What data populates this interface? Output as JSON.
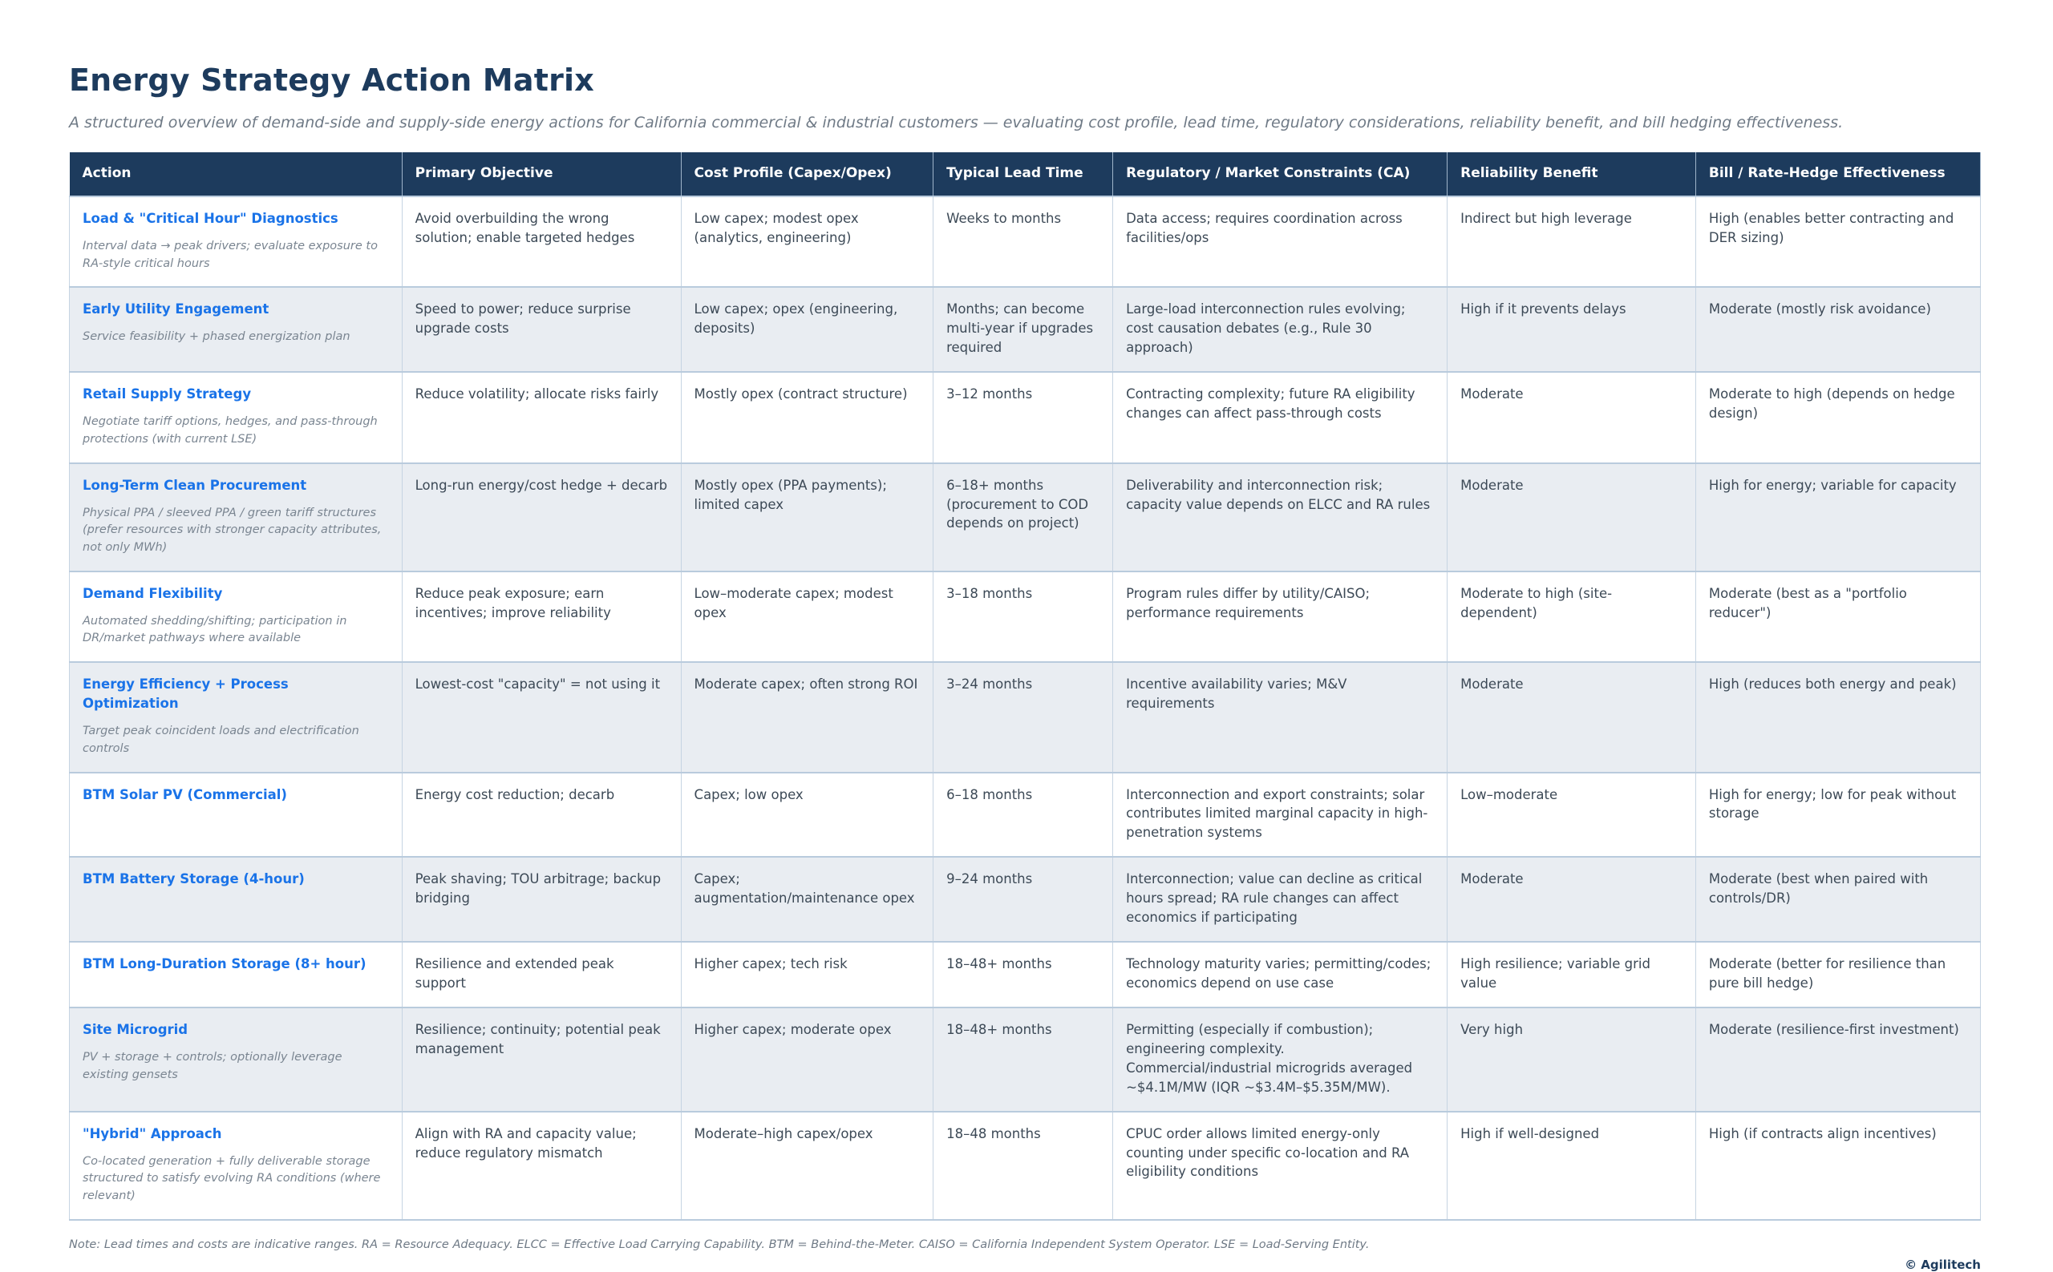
{
  "page": {
    "title": "Energy Strategy Action Matrix",
    "subtitle": "A structured overview of demand-side and supply-side energy actions for California commercial & industrial customers — evaluating cost profile, lead time, regulatory considerations, reliability benefit, and bill hedging effectiveness.",
    "note": "Note: Lead times and costs are indicative ranges. RA = Resource Adequacy. ELCC = Effective Load Carrying Capability. BTM = Behind-the-Meter. CAISO = California Independent System Operator. LSE = Load-Serving Entity.",
    "copyright": "© Agilitech"
  },
  "colors": {
    "header_navy": "#1d3b5d",
    "link_blue": "#1a73e8",
    "alt_row": "#e9edf2",
    "border": "#c6d4e2"
  },
  "table": {
    "columns": [
      "Action",
      "Primary Objective",
      "Cost Profile (Capex/Opex)",
      "Typical Lead Time",
      "Regulatory / Market Constraints (CA)",
      "Reliability Benefit",
      "Bill / Rate-Hedge Effectiveness"
    ],
    "column_widths": [
      "17.4%",
      "14.6%",
      "13.2%",
      "9.4%",
      "17.5%",
      "13.0%",
      "14.9%"
    ],
    "rows": [
      {
        "action": "Load & \"Critical Hour\" Diagnostics",
        "action_detail": "Interval data → peak drivers; evaluate exposure to RA-style critical hours",
        "objective": "Avoid overbuilding the wrong solution; enable targeted hedges",
        "cost": "Low capex; modest opex (analytics, engineering)",
        "lead_time": "Weeks to months",
        "regulatory": "Data access; requires coordination across facilities/ops",
        "reliability": "Indirect but high leverage",
        "hedge": "High (enables better contracting and DER sizing)"
      },
      {
        "action": "Early Utility Engagement",
        "action_detail": "Service feasibility + phased energization plan",
        "objective": "Speed to power; reduce surprise upgrade costs",
        "cost": "Low capex; opex (engineering, deposits)",
        "lead_time": "Months; can become multi-year if upgrades required",
        "regulatory": "Large-load interconnection rules evolving; cost causation debates (e.g., Rule 30 approach)",
        "reliability": "High if it prevents delays",
        "hedge": "Moderate (mostly risk avoidance)"
      },
      {
        "action": "Retail Supply Strategy",
        "action_detail": "Negotiate tariff options, hedges, and pass-through protections (with current LSE)",
        "objective": "Reduce volatility; allocate risks fairly",
        "cost": "Mostly opex (contract structure)",
        "lead_time": "3–12 months",
        "regulatory": "Contracting complexity; future RA eligibility changes can affect pass-through costs",
        "reliability": "Moderate",
        "hedge": "Moderate to high (depends on hedge design)"
      },
      {
        "action": "Long-Term Clean Procurement",
        "action_detail": "Physical PPA / sleeved PPA / green tariff structures (prefer resources with stronger capacity attributes, not only MWh)",
        "objective": "Long-run energy/cost hedge + decarb",
        "cost": "Mostly opex (PPA payments); limited capex",
        "lead_time": "6–18+ months (procurement to COD depends on project)",
        "regulatory": "Deliverability and interconnection risk; capacity value depends on ELCC and RA rules",
        "reliability": "Moderate",
        "hedge": "High for energy; variable for capacity"
      },
      {
        "action": "Demand Flexibility",
        "action_detail": "Automated shedding/shifting; participation in DR/market pathways where available",
        "objective": "Reduce peak exposure; earn incentives; improve reliability",
        "cost": "Low–moderate capex; modest opex",
        "lead_time": "3–18 months",
        "regulatory": "Program rules differ by utility/CAISO; performance requirements",
        "reliability": "Moderate to high (site-dependent)",
        "hedge": "Moderate (best as a \"portfolio reducer\")"
      },
      {
        "action": "Energy Efficiency + Process Optimization",
        "action_detail": "Target peak coincident loads and electrification controls",
        "objective": "Lowest-cost \"capacity\" = not using it",
        "cost": "Moderate capex; often strong ROI",
        "lead_time": "3–24 months",
        "regulatory": "Incentive availability varies; M&V requirements",
        "reliability": "Moderate",
        "hedge": "High (reduces both energy and peak)"
      },
      {
        "action": "BTM Solar PV (Commercial)",
        "action_detail": "",
        "objective": "Energy cost reduction; decarb",
        "cost": "Capex; low opex",
        "lead_time": "6–18 months",
        "regulatory": "Interconnection and export constraints; solar contributes limited marginal capacity in high-penetration systems",
        "reliability": "Low–moderate",
        "hedge": "High for energy; low for peak without storage"
      },
      {
        "action": "BTM Battery Storage (4-hour)",
        "action_detail": "",
        "objective": "Peak shaving; TOU arbitrage; backup bridging",
        "cost": "Capex; augmentation/maintenance opex",
        "lead_time": "9–24 months",
        "regulatory": "Interconnection; value can decline as critical hours spread; RA rule changes can affect economics if participating",
        "reliability": "Moderate",
        "hedge": "Moderate (best when paired with controls/DR)"
      },
      {
        "action": "BTM Long-Duration Storage (8+ hour)",
        "action_detail": "",
        "objective": "Resilience and extended peak support",
        "cost": "Higher capex; tech risk",
        "lead_time": "18–48+ months",
        "regulatory": "Technology maturity varies; permitting/codes; economics depend on use case",
        "reliability": "High resilience; variable grid value",
        "hedge": "Moderate (better for resilience than pure bill hedge)"
      },
      {
        "action": "Site Microgrid",
        "action_detail": "PV + storage + controls; optionally leverage existing gensets",
        "objective": "Resilience; continuity; potential peak management",
        "cost": "Higher capex; moderate opex",
        "lead_time": "18–48+ months",
        "regulatory": "Permitting (especially if combustion); engineering complexity. Commercial/industrial microgrids averaged ~$4.1M/MW (IQR ~$3.4M–$5.35M/MW).",
        "reliability": "Very high",
        "hedge": "Moderate (resilience-first investment)"
      },
      {
        "action": "\"Hybrid\" Approach",
        "action_detail": "Co-located generation + fully deliverable storage structured to satisfy evolving RA conditions (where relevant)",
        "objective": "Align with RA and capacity value; reduce regulatory mismatch",
        "cost": "Moderate–high capex/opex",
        "lead_time": "18–48 months",
        "regulatory": "CPUC order allows limited energy-only counting under specific co-location and RA eligibility conditions",
        "reliability": "High if well-designed",
        "hedge": "High (if contracts align incentives)"
      }
    ]
  }
}
